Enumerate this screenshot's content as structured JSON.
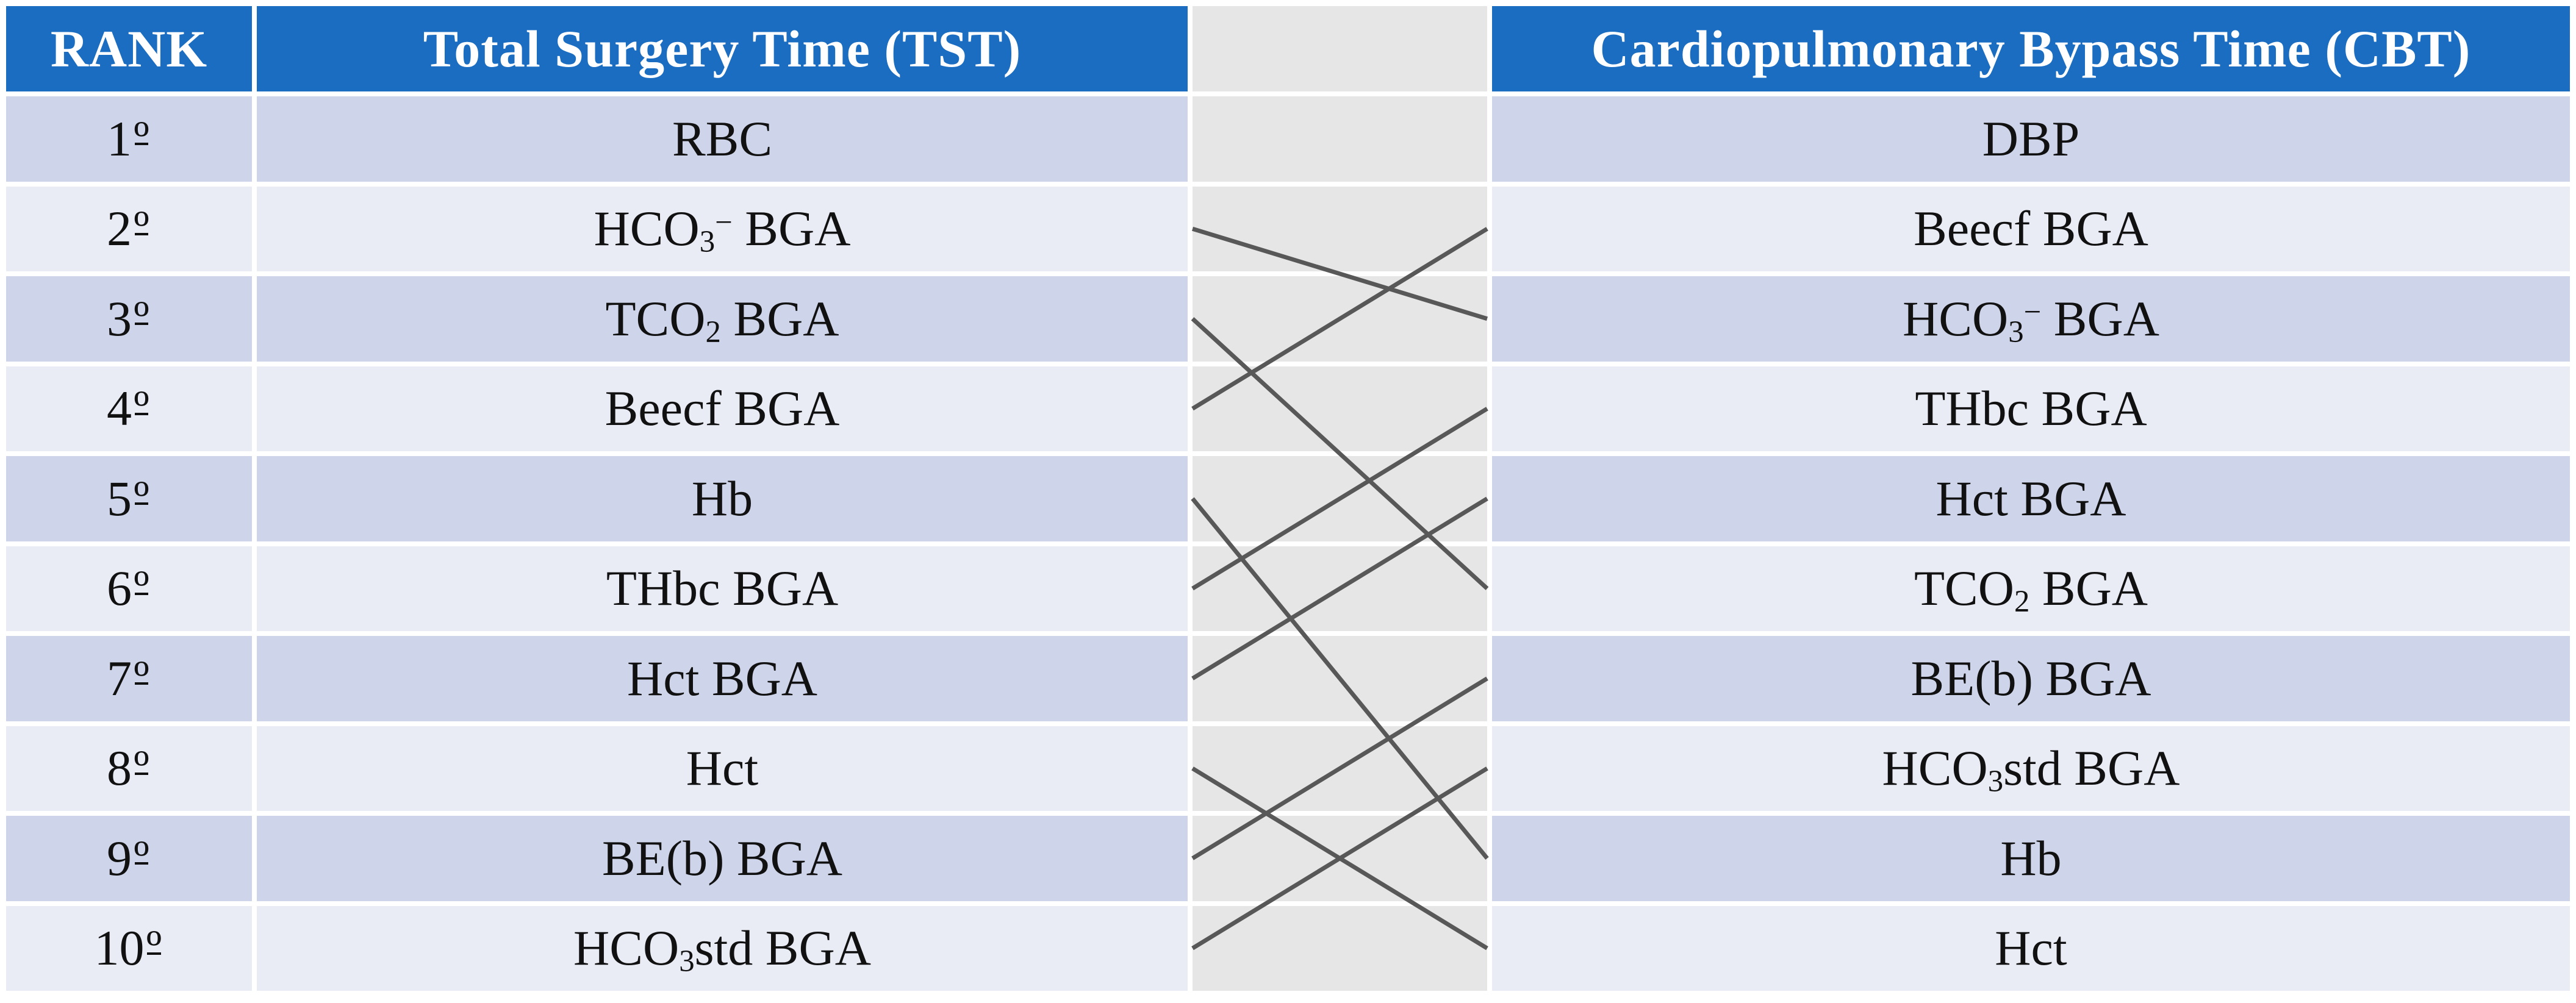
{
  "figure": {
    "type": "ranking-comparison-table",
    "headers": {
      "rank": "RANK",
      "tst": "Total Surgery Time (TST)",
      "cbt": "Cardiopulmonary Bypass Time (CBT)"
    },
    "rows": [
      {
        "rank": "1",
        "ordinal": "º",
        "tst": [
          [
            "n",
            "RBC"
          ]
        ],
        "cbt": [
          [
            "n",
            "DBP"
          ]
        ]
      },
      {
        "rank": "2",
        "ordinal": "º",
        "tst": [
          [
            "n",
            "HCO"
          ],
          [
            "sub",
            "3"
          ],
          [
            "sup",
            "−"
          ],
          [
            "n",
            " BGA"
          ]
        ],
        "cbt": [
          [
            "n",
            "Beecf BGA"
          ]
        ]
      },
      {
        "rank": "3",
        "ordinal": "º",
        "tst": [
          [
            "n",
            "TCO"
          ],
          [
            "sub",
            "2"
          ],
          [
            "n",
            " BGA"
          ]
        ],
        "cbt": [
          [
            "n",
            "HCO"
          ],
          [
            "sub",
            "3"
          ],
          [
            "sup",
            "−"
          ],
          [
            "n",
            " BGA"
          ]
        ]
      },
      {
        "rank": "4",
        "ordinal": "º",
        "tst": [
          [
            "n",
            "Beecf BGA"
          ]
        ],
        "cbt": [
          [
            "n",
            "THbc BGA"
          ]
        ]
      },
      {
        "rank": "5",
        "ordinal": "º",
        "tst": [
          [
            "n",
            "Hb"
          ]
        ],
        "cbt": [
          [
            "n",
            "Hct BGA"
          ]
        ]
      },
      {
        "rank": "6",
        "ordinal": "º",
        "tst": [
          [
            "n",
            "THbc BGA"
          ]
        ],
        "cbt": [
          [
            "n",
            "TCO"
          ],
          [
            "sub",
            "2"
          ],
          [
            "n",
            " BGA"
          ]
        ]
      },
      {
        "rank": "7",
        "ordinal": "º",
        "tst": [
          [
            "n",
            "Hct BGA"
          ]
        ],
        "cbt": [
          [
            "n",
            "BE(b) BGA"
          ]
        ]
      },
      {
        "rank": "8",
        "ordinal": "º",
        "tst": [
          [
            "n",
            "Hct"
          ]
        ],
        "cbt": [
          [
            "n",
            "HCO"
          ],
          [
            "sub",
            "3"
          ],
          [
            "n",
            "std BGA"
          ]
        ]
      },
      {
        "rank": "9",
        "ordinal": "º",
        "tst": [
          [
            "n",
            "BE(b) BGA"
          ]
        ],
        "cbt": [
          [
            "n",
            "Hb"
          ]
        ]
      },
      {
        "rank": "10",
        "ordinal": "º",
        "tst": [
          [
            "n",
            "HCO"
          ],
          [
            "sub",
            "3"
          ],
          [
            "n",
            "std BGA"
          ]
        ],
        "cbt": [
          [
            "n",
            "Hct"
          ]
        ]
      }
    ],
    "connections": [
      {
        "param": "hco3-bga",
        "tst_rank": 2,
        "cbt_rank": 3
      },
      {
        "param": "tco2-bga",
        "tst_rank": 3,
        "cbt_rank": 6
      },
      {
        "param": "beecf-bga",
        "tst_rank": 4,
        "cbt_rank": 2
      },
      {
        "param": "hb",
        "tst_rank": 5,
        "cbt_rank": 9
      },
      {
        "param": "thbc-bga",
        "tst_rank": 6,
        "cbt_rank": 4
      },
      {
        "param": "hct-bga",
        "tst_rank": 7,
        "cbt_rank": 5
      },
      {
        "param": "hct",
        "tst_rank": 8,
        "cbt_rank": 10
      },
      {
        "param": "be-b-bga",
        "tst_rank": 9,
        "cbt_rank": 7
      },
      {
        "param": "hco3std-bga",
        "tst_rank": 10,
        "cbt_rank": 8
      }
    ],
    "colors": {
      "background": "#ffffff",
      "header_bg": "#1b6dc1",
      "header_text": "#ffffff",
      "row_odd_bg": "#ced5ea",
      "row_even_bg": "#e9ebf5",
      "gap_bg": "#e6e6e6",
      "body_text": "#111111"
    },
    "line_style": {
      "color": "#585858",
      "width": 7
    }
  }
}
